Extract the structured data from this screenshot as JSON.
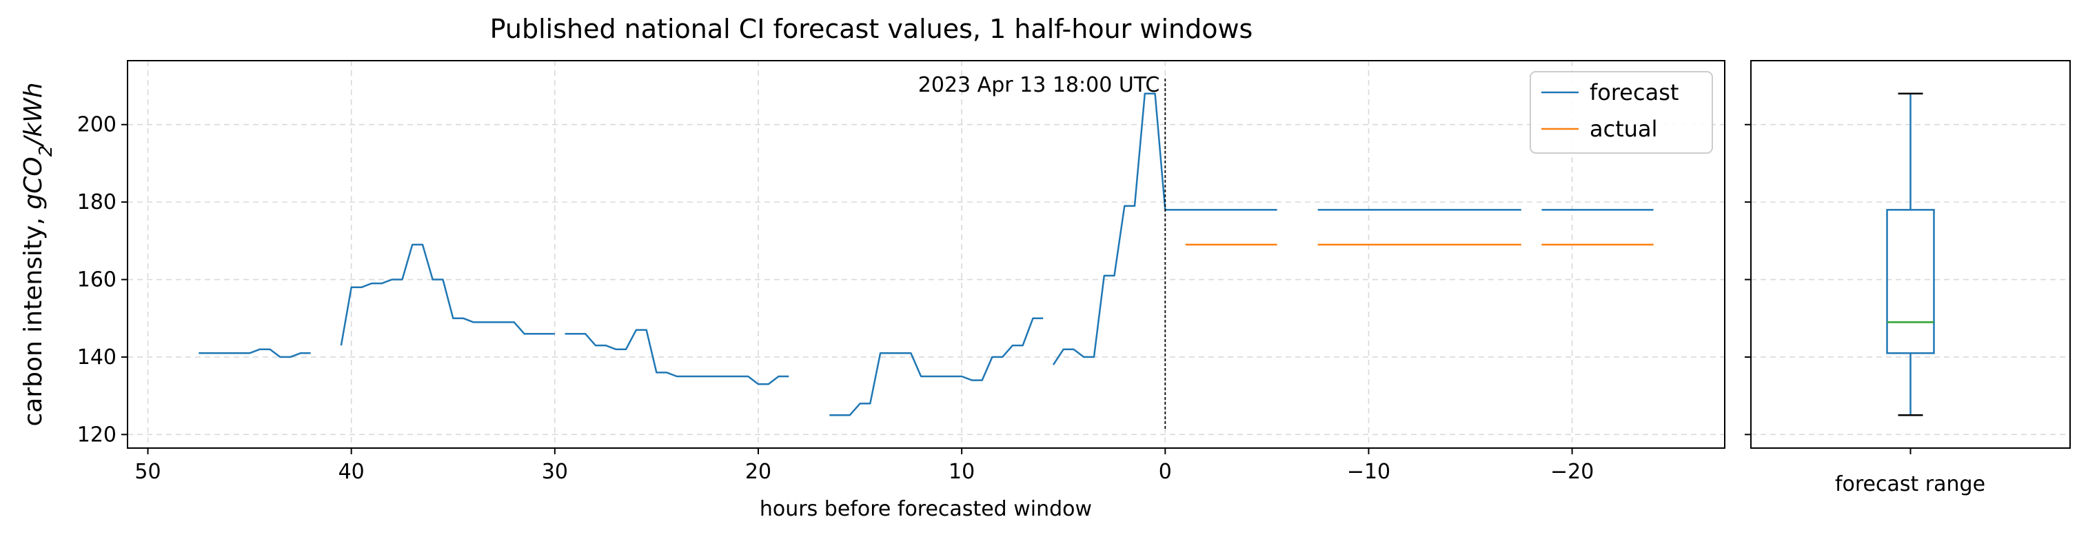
{
  "chart_data": [
    {
      "type": "line",
      "title": "Published national CI forecast values, 1 half-hour windows",
      "xlabel": "hours before forecasted window",
      "ylabel_prefix": "carbon intensity, ",
      "ylabel_math": "gCO",
      "ylabel_sub": "2",
      "ylabel_suffix": "/kWh",
      "xlim": [
        51,
        -27.5
      ],
      "ylim": [
        116.5,
        216.5
      ],
      "x_ticks": [
        50,
        40,
        30,
        20,
        10,
        0,
        -10,
        -20
      ],
      "x_tick_labels": [
        "50",
        "40",
        "30",
        "20",
        "10",
        "0",
        "−10",
        "−20"
      ],
      "y_ticks": [
        120,
        140,
        160,
        180,
        200
      ],
      "y_tick_labels": [
        "120",
        "140",
        "160",
        "180",
        "200"
      ],
      "grid": true,
      "legend_position": "top-right",
      "annotation": {
        "text": "2023 Apr 13 18:00 UTC",
        "x": 0
      },
      "series": [
        {
          "name": "forecast",
          "color": "#1f77b4",
          "segments": [
            [
              [
                47.5,
                141
              ],
              [
                47,
                141
              ],
              [
                46.5,
                141
              ],
              [
                46,
                141
              ],
              [
                45.5,
                141
              ],
              [
                45,
                141
              ],
              [
                44.5,
                142
              ],
              [
                44,
                142
              ],
              [
                43.5,
                140
              ],
              [
                43,
                140
              ],
              [
                42.5,
                141
              ],
              [
                42,
                141
              ]
            ],
            [
              [
                40.5,
                143
              ],
              [
                40,
                158
              ],
              [
                39.5,
                158
              ],
              [
                39,
                159
              ],
              [
                38.5,
                159
              ],
              [
                38,
                160
              ],
              [
                37.5,
                160
              ],
              [
                37,
                169
              ],
              [
                36.5,
                169
              ],
              [
                36,
                160
              ],
              [
                35.5,
                160
              ],
              [
                35,
                150
              ],
              [
                34.5,
                150
              ],
              [
                34,
                149
              ],
              [
                33.5,
                149
              ],
              [
                33,
                149
              ],
              [
                32.5,
                149
              ],
              [
                32,
                149
              ],
              [
                31.5,
                146
              ],
              [
                31,
                146
              ],
              [
                30.5,
                146
              ],
              [
                30,
                146
              ]
            ],
            [
              [
                29.5,
                146
              ],
              [
                29,
                146
              ],
              [
                28.5,
                146
              ],
              [
                28,
                143
              ],
              [
                27.5,
                143
              ],
              [
                27,
                142
              ],
              [
                26.5,
                142
              ],
              [
                26,
                147
              ],
              [
                25.5,
                147
              ],
              [
                25,
                136
              ],
              [
                24.5,
                136
              ],
              [
                24,
                135
              ],
              [
                23.5,
                135
              ],
              [
                23,
                135
              ],
              [
                22.5,
                135
              ],
              [
                22,
                135
              ],
              [
                21.5,
                135
              ],
              [
                21,
                135
              ],
              [
                20.5,
                135
              ],
              [
                20,
                133
              ],
              [
                19.5,
                133
              ],
              [
                19,
                135
              ],
              [
                18.5,
                135
              ]
            ],
            [
              [
                16.5,
                125
              ],
              [
                16,
                125
              ],
              [
                15.5,
                125
              ],
              [
                15,
                128
              ],
              [
                14.5,
                128
              ],
              [
                14,
                141
              ],
              [
                13.5,
                141
              ],
              [
                13,
                141
              ],
              [
                12.5,
                141
              ],
              [
                12,
                135
              ],
              [
                11.5,
                135
              ],
              [
                11,
                135
              ],
              [
                10.5,
                135
              ],
              [
                10,
                135
              ],
              [
                9.5,
                134
              ],
              [
                9,
                134
              ],
              [
                8.5,
                140
              ],
              [
                8,
                140
              ],
              [
                7.5,
                143
              ],
              [
                7,
                143
              ],
              [
                6.5,
                150
              ],
              [
                6,
                150
              ]
            ],
            [
              [
                5.5,
                138
              ],
              [
                5,
                142
              ],
              [
                4.5,
                142
              ],
              [
                4,
                140
              ],
              [
                3.5,
                140
              ],
              [
                3,
                161
              ],
              [
                2.5,
                161
              ],
              [
                2,
                179
              ],
              [
                1.5,
                179
              ],
              [
                1,
                208
              ],
              [
                0.5,
                208
              ],
              [
                0,
                178
              ]
            ],
            [
              [
                0,
                178
              ],
              [
                -5.5,
                178
              ]
            ],
            [
              [
                -7.5,
                178
              ],
              [
                -17.5,
                178
              ]
            ],
            [
              [
                -18.5,
                178
              ],
              [
                -24,
                178
              ]
            ]
          ]
        },
        {
          "name": "actual",
          "color": "#ff7f0e",
          "segments": [
            [
              [
                -1,
                169
              ],
              [
                -5.5,
                169
              ]
            ],
            [
              [
                -7.5,
                169
              ],
              [
                -17.5,
                169
              ]
            ],
            [
              [
                -18.5,
                169
              ],
              [
                -24,
                169
              ]
            ]
          ]
        }
      ]
    },
    {
      "type": "box",
      "xlabel": "forecast range",
      "ylim": [
        116.5,
        216.5
      ],
      "box": {
        "whisker_low": 125,
        "q1": 141,
        "median": 149,
        "q3": 178,
        "whisker_high": 208
      },
      "box_color": "#1f77b4",
      "median_color": "#2ca02c",
      "grid": true
    }
  ]
}
